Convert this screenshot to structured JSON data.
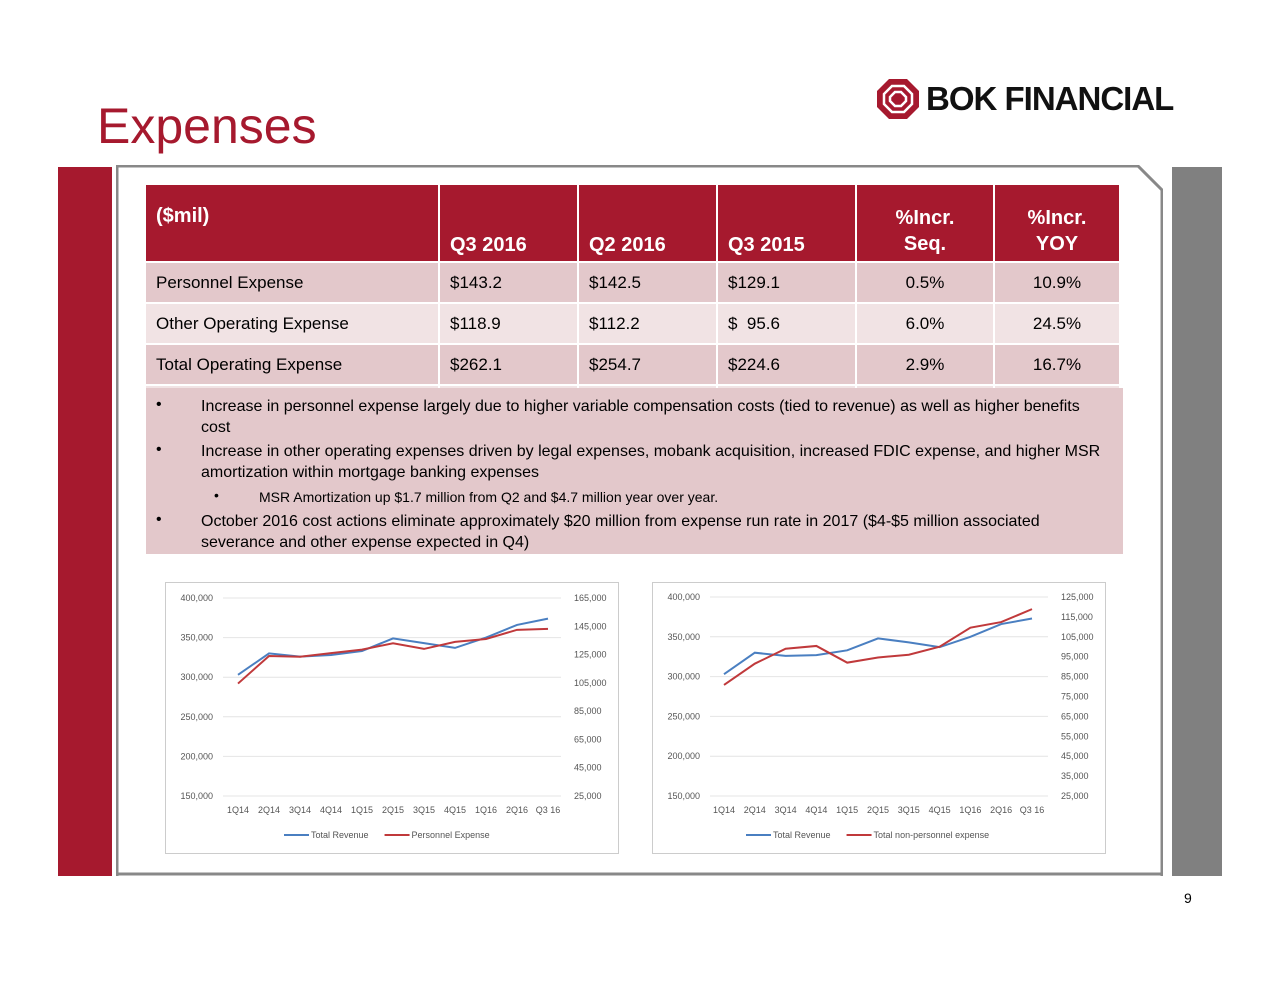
{
  "title": "Expenses",
  "logo": {
    "text": "BOK FINANCIAL",
    "color": "#a6192e"
  },
  "colors": {
    "brand": "#a6192e",
    "row_dark": "#e3c8cb",
    "row_light": "#f1e3e4",
    "revenue": "#4a7fc1",
    "expense": "#c0393b"
  },
  "table": {
    "headers": [
      "($mil)",
      "Q3 2016",
      "Q2 2016",
      "Q3 2015",
      [
        "%Incr.",
        "Seq."
      ],
      [
        "%Incr.",
        "YOY"
      ]
    ],
    "rows": [
      [
        "Personnel Expense",
        "$143.2",
        "$142.5",
        "$129.1",
        "0.5%",
        "10.9%"
      ],
      [
        "Other Operating Expense",
        "$118.9",
        "$112.2",
        "$  95.6",
        "6.0%",
        "24.5%"
      ],
      [
        "Total Operating Expense",
        "$262.1",
        "$254.7",
        "$224.6",
        "2.9%",
        "16.7%"
      ]
    ]
  },
  "bullets": [
    {
      "text": "Increase in personnel expense largely due to higher variable compensation costs (tied to revenue) as well as higher benefits cost"
    },
    {
      "text": "Increase in other operating expenses driven by legal expenses, mobank acquisition, increased FDIC expense, and higher MSR amortization within mortgage banking expenses"
    },
    {
      "text": "MSR Amortization up $1.7 million from Q2 and $4.7 million year over year.",
      "sub": true
    },
    {
      "text": "October 2016 cost actions eliminate approximately $20 million from expense run rate in 2017 ($4-$5 million associated severance and other expense expected in Q4)"
    }
  ],
  "page_number": "9",
  "chart_data": [
    {
      "type": "line",
      "categories": [
        "1Q14",
        "2Q14",
        "3Q14",
        "4Q14",
        "1Q15",
        "2Q15",
        "3Q15",
        "4Q15",
        "1Q16",
        "2Q16",
        "Q3 16"
      ],
      "y_left": {
        "ticks": [
          "400,000",
          "350,000",
          "300,000",
          "250,000",
          "200,000",
          "150,000"
        ],
        "range": [
          150000,
          400000
        ]
      },
      "y_right": {
        "ticks": [
          "165,000",
          "145,000",
          "125,000",
          "105,000",
          "85,000",
          "65,000",
          "45,000",
          "25,000"
        ],
        "range": [
          25000,
          165000
        ]
      },
      "grid": true,
      "legend": "bottom",
      "series": [
        {
          "name": "Total Revenue",
          "axis": "left",
          "color": "#4a7fc1",
          "values": [
            303000,
            330000,
            326000,
            328000,
            333000,
            349000,
            343000,
            337000,
            350000,
            366000,
            374000
          ]
        },
        {
          "name": "Personnel Expense",
          "axis": "right",
          "color": "#c0393b",
          "values": [
            104500,
            124000,
            123500,
            126000,
            128500,
            133000,
            129000,
            134000,
            136000,
            142500,
            143200
          ]
        }
      ]
    },
    {
      "type": "line",
      "categories": [
        "1Q14",
        "2Q14",
        "3Q14",
        "4Q14",
        "1Q15",
        "2Q15",
        "3Q15",
        "4Q15",
        "1Q16",
        "2Q16",
        "Q3 16"
      ],
      "y_left": {
        "ticks": [
          "400,000",
          "350,000",
          "300,000",
          "250,000",
          "200,000",
          "150,000"
        ],
        "range": [
          150000,
          400000
        ]
      },
      "y_right": {
        "ticks": [
          "125,000",
          "115,000",
          "105,000",
          "95,000",
          "85,000",
          "75,000",
          "65,000",
          "55,000",
          "45,000",
          "35,000",
          "25,000"
        ],
        "range": [
          25000,
          125000
        ]
      },
      "grid": true,
      "legend": "bottom",
      "series": [
        {
          "name": "Total Revenue",
          "axis": "left",
          "color": "#4a7fc1",
          "values": [
            303000,
            330000,
            326000,
            327000,
            333000,
            348000,
            343000,
            337000,
            350000,
            366000,
            373000
          ]
        },
        {
          "name": "Total non-personnel expense",
          "axis": "right",
          "color": "#c0393b",
          "values": [
            80800,
            91500,
            99000,
            100400,
            92000,
            94600,
            96000,
            100000,
            109600,
            112400,
            118900
          ]
        }
      ]
    }
  ]
}
